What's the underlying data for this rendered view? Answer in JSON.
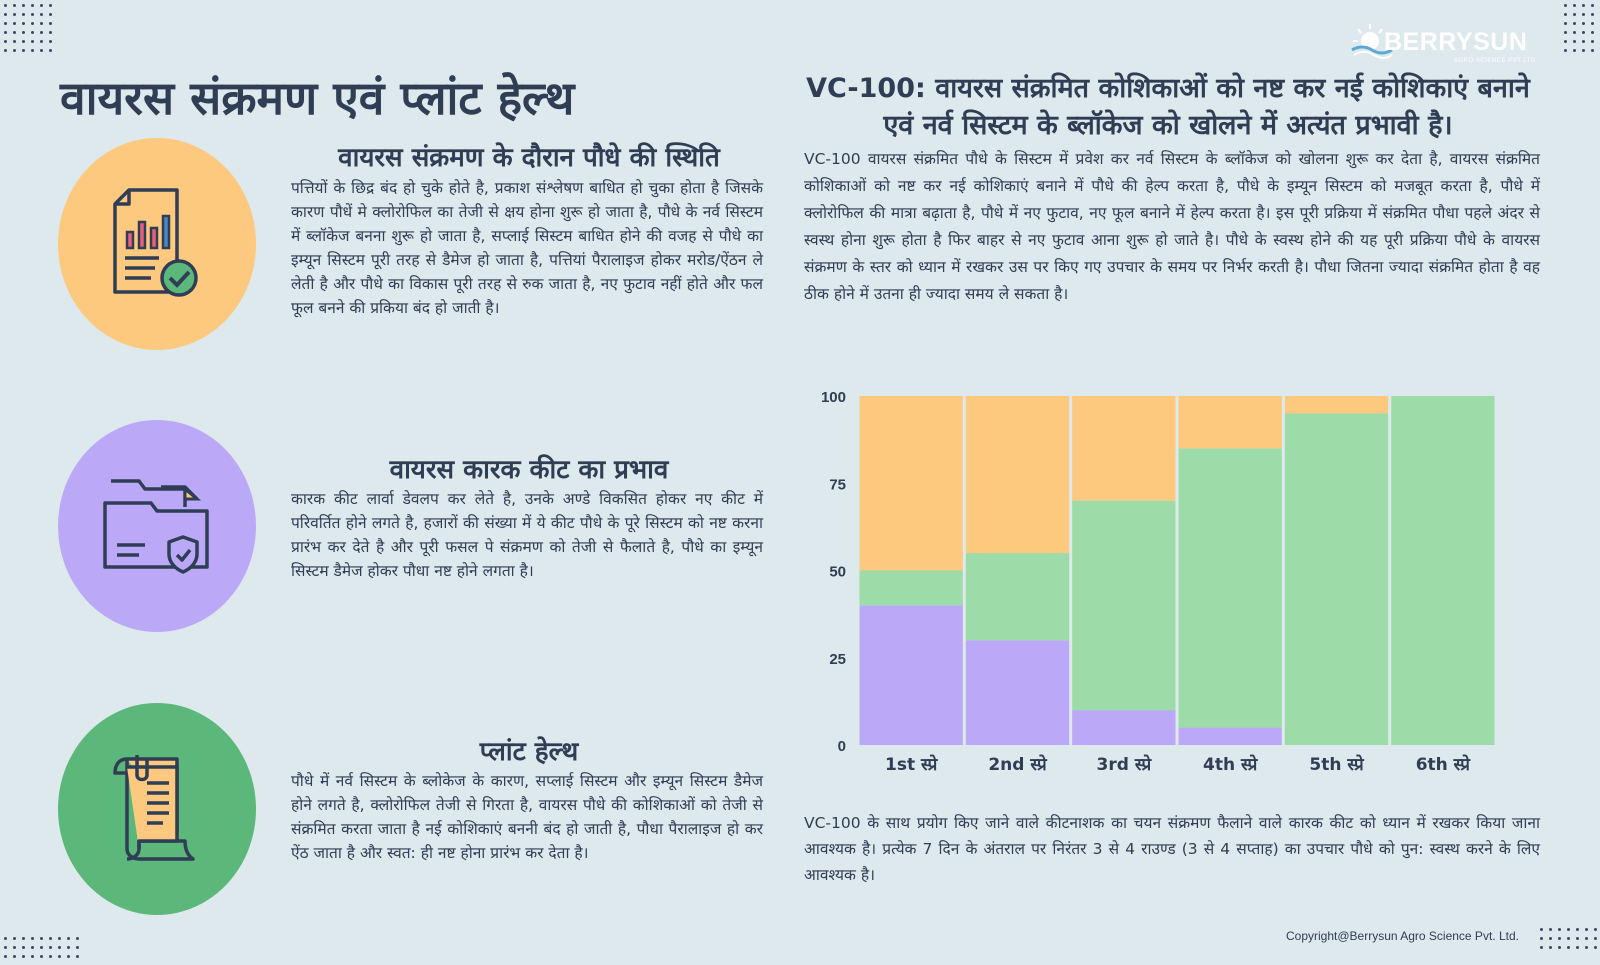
{
  "brand": {
    "name": "BERRYSUN",
    "tagline": "AGRO SCIENCE PVT LTD"
  },
  "main_title": "वायरस संक्रमण एवं प्लांट हेल्थ",
  "sections": [
    {
      "title": "वायरस संक्रमण के दौरान पौधे की स्थिति",
      "text": "पत्तियों के छिद्र बंद हो चुके होते है, प्रकाश संश्लेषण बाधित हो चुका होता है जिसके कारण पौधें मे क्लोरोफिल का तेजी से क्षय होना शुरू हो जाता है, पौधे के नर्व सिस्टम में ब्लॉकेज बनना शुरू हो जाता है, सप्लाई सिस्टम बाधित होने की वजह से पौधे का इम्यून सिस्टम पूरी तरह से डैमेज हो जाता है, पत्तियां पैरालाइज होकर मरोड/ऐंठन ले लेती है और पौधे का विकास पूरी तरह से रुक जाता है, नए फुटाव नहीं होते और फल फूल बनने की प्रकिया बंद हो जाती है।",
      "icon": "report-check-icon",
      "color": "#fdc97e"
    },
    {
      "title": "वायरस कारक कीट का प्रभाव",
      "text": "कारक कीट लार्वा डेवलप कर लेते है, उनके अण्डे विकसित होकर नए कीट में परिवर्तित होने लगते है, हजारों की संख्या में ये कीट पौधे के पूरे सिस्टम को नष्ट करना प्रारंभ कर देते है और पूरी फसल पे संक्रमण को तेजी से फैलाते है, पौधे का इम्यून सिस्टम डैमेज होकर पौधा नष्ट होने लगता है।",
      "icon": "folder-shield-icon",
      "color": "#bba9f8"
    },
    {
      "title": "प्लांट हेल्थ",
      "text": "पौधे में नर्व सिस्टम के ब्लोकेज के कारण, सप्लाई सिस्टम और इम्यून सिस्टम डैमेज होने लगते है, क्लोरोफिल तेजी से गिरता है, वायरस पौधे की कोशिकाओं को तेजी से संक्रमित करता जाता है नई कोशिकाएं बननी बंद हो जाती है, पौधा पैरालाइज हो कर ऐंठ जाता है और स्वत: ही नष्ट होना प्रारंभ कर देता है।",
      "icon": "scroll-document-icon",
      "color": "#5cb87a"
    }
  ],
  "right": {
    "title": "VC-100: वायरस संक्रमित कोशिकाओं को नष्ट कर नई कोशिकाएं बनाने एवं नर्व सिस्टम के ब्लॉकेज को खोलने में अत्यंत प्रभावी है।",
    "paragraph": "VC-100 वायरस संक्रमित पौधे के सिस्टम में प्रवेश कर नर्व सिस्टम के ब्लॉकेज को खोलना शुरू कर देता है, वायरस संक्रमित कोशिकाओं को नष्ट कर नई कोशिकाएं बनाने में पौधे की हेल्प करता है, पौधे के इम्यून सिस्टम को मजबूत करता है, पौधे में क्लोरोफिल की मात्रा बढ़ाता है, पौधे में नए फुटाव, नए फूल बनाने में हेल्प करता है। इस पूरी प्रक्रिया में संक्रमित पौधा पहले अंदर से स्वस्थ होना शुरू होता है फिर बाहर से नए फुटाव आना शुरू हो जाते है। पौधे के स्वस्थ होने की यह पूरी प्रक्रिया पौधे के वायरस संक्रमण के स्तर को ध्यान में रखकर उस पर किए गए उपचार के समय पर निर्भर करती है। पौधा जितना ज्यादा संक्रमित होता है वह ठीक होने में उतना ही ज्यादा समय ले सकता है।",
    "note": "VC-100 के साथ प्रयोग किए जाने वाले कीटनाशक का चयन संक्रमण फैलाने वाले कारक कीट को ध्यान में रखकर किया जाना आवश्यक है। प्रत्येक 7 दिन के अंतराल पर निरंतर 3 से 4 राउण्ड (3 से 4 सप्ताह) का उपचार पौधे को पुन: स्वस्थ करने के लिए आवश्यक है।"
  },
  "chart_data": {
    "type": "bar",
    "stacked": true,
    "categories": [
      "1st स्प्रे",
      "2nd स्प्रे",
      "3rd स्प्रे",
      "4th स्प्रे",
      "5th स्प्रे",
      "6th स्प्रे"
    ],
    "series": [
      {
        "name": "purple",
        "color": "#bba9f8",
        "values": [
          40,
          30,
          10,
          5,
          0,
          0
        ]
      },
      {
        "name": "green",
        "color": "#9ddca9",
        "values": [
          10,
          25,
          60,
          80,
          95,
          100
        ]
      },
      {
        "name": "orange",
        "color": "#fdc97e",
        "values": [
          50,
          45,
          30,
          15,
          5,
          0
        ]
      }
    ],
    "ylim": [
      0,
      100
    ],
    "yticks": [
      0,
      25,
      50,
      75,
      100
    ],
    "title": "",
    "xlabel": "",
    "ylabel": "",
    "grid": false
  },
  "copyright": "Copyright@Berrysun Agro Science Pvt. Ltd."
}
